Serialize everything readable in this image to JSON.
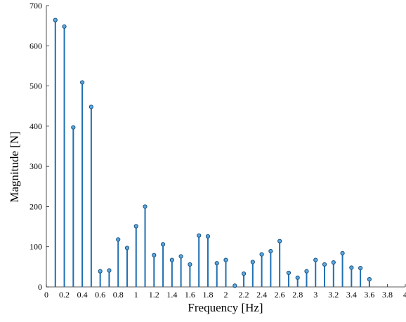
{
  "chart_data": {
    "type": "stem",
    "xlabel": "Frequency [Hz]",
    "ylabel": "Magnitude [N]",
    "xlim": [
      0,
      4
    ],
    "ylim": [
      0,
      700
    ],
    "xticks": [
      0,
      0.2,
      0.4,
      0.6,
      0.8,
      1,
      1.2,
      1.4,
      1.6,
      1.8,
      2,
      2.2,
      2.4,
      2.6,
      2.8,
      3,
      3.2,
      3.4,
      3.6,
      3.8,
      4
    ],
    "xtick_labels": [
      "0",
      "0.2",
      "0.4",
      "0.6",
      "0.8",
      "1",
      "1.2",
      "1.4",
      "1.6",
      "1.8",
      "2",
      "2.2",
      "2.4",
      "2.6",
      "2.8",
      "3",
      "3.2",
      "3.4",
      "3.6",
      "3.8",
      "4"
    ],
    "yticks": [
      0,
      100,
      200,
      300,
      400,
      500,
      600,
      700
    ],
    "ytick_labels": [
      "0",
      "100",
      "200",
      "300",
      "400",
      "500",
      "600",
      "700"
    ],
    "grid": false,
    "color": "#1f6fb2",
    "x": [
      0.1,
      0.2,
      0.3,
      0.4,
      0.5,
      0.6,
      0.7,
      0.8,
      0.9,
      1.0,
      1.1,
      1.2,
      1.3,
      1.4,
      1.5,
      1.6,
      1.7,
      1.8,
      1.9,
      2.0,
      2.1,
      2.2,
      2.3,
      2.4,
      2.5,
      2.6,
      2.7,
      2.8,
      2.9,
      3.0,
      3.1,
      3.2,
      3.3,
      3.4,
      3.5,
      3.6
    ],
    "y": [
      664,
      648,
      397,
      509,
      448,
      39,
      41,
      118,
      97,
      151,
      200,
      79,
      106,
      67,
      76,
      56,
      128,
      126,
      59,
      67,
      3,
      33,
      62,
      81,
      89,
      114,
      35,
      23,
      39,
      67,
      56,
      61,
      84,
      48,
      47,
      19
    ]
  }
}
